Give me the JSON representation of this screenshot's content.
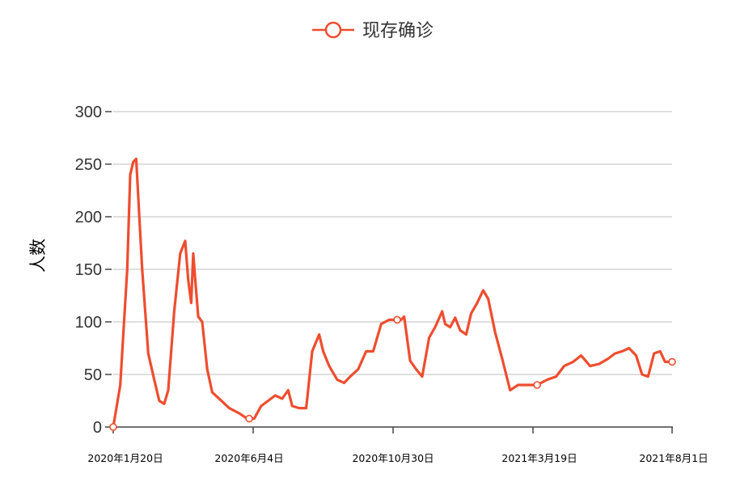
{
  "colors": {
    "series": "#ee4d2f",
    "grid": "#cccccc",
    "axis": "#444444",
    "background": "#ffffff"
  },
  "legend_icon": "circle-line-icon",
  "chart_data": {
    "type": "line",
    "title": "",
    "xlabel": "",
    "ylabel": "人数",
    "ylim": [
      0,
      300
    ],
    "yticks": [
      "0",
      "50",
      "100",
      "150",
      "200",
      "250",
      "300"
    ],
    "xticks": [
      "2020年1月20日",
      "2020年6月4日",
      "2020年10月30日",
      "2021年3月19日",
      "2021年8月1日"
    ],
    "xlim": [
      "2020-01-20",
      "2021-08-01"
    ],
    "grid": true,
    "legend_position": "top-center",
    "series": [
      {
        "name": "现存确诊",
        "x": [
          "2020-01-20",
          "2020-01-27",
          "2020-02-03",
          "2020-02-06",
          "2020-02-09",
          "2020-02-12",
          "2020-02-18",
          "2020-02-24",
          "2020-03-01",
          "2020-03-06",
          "2020-03-11",
          "2020-03-15",
          "2020-03-21",
          "2020-03-27",
          "2020-04-01",
          "2020-04-04",
          "2020-04-07",
          "2020-04-09",
          "2020-04-11",
          "2020-04-14",
          "2020-04-18",
          "2020-04-23",
          "2020-04-28",
          "2020-05-06",
          "2020-05-15",
          "2020-05-25",
          "2020-06-02",
          "2020-06-09",
          "2020-06-16",
          "2020-06-23",
          "2020-06-30",
          "2020-07-07",
          "2020-07-13",
          "2020-07-17",
          "2020-07-24",
          "2020-07-31",
          "2020-08-06",
          "2020-08-13",
          "2020-08-17",
          "2020-08-23",
          "2020-08-31",
          "2020-09-07",
          "2020-09-13",
          "2020-09-21",
          "2020-09-29",
          "2020-10-06",
          "2020-10-14",
          "2020-10-22",
          "2020-10-30",
          "2020-11-03",
          "2020-11-06",
          "2020-11-12",
          "2020-11-18",
          "2020-11-24",
          "2020-12-01",
          "2020-12-07",
          "2020-12-14",
          "2020-12-17",
          "2020-12-22",
          "2020-12-27",
          "2021-01-01",
          "2021-01-07",
          "2021-01-12",
          "2021-01-18",
          "2021-01-24",
          "2021-01-29",
          "2021-02-05",
          "2021-02-12",
          "2021-02-20",
          "2021-02-28",
          "2021-03-09",
          "2021-03-19",
          "2021-03-29",
          "2021-04-07",
          "2021-04-15",
          "2021-04-24",
          "2021-05-02",
          "2021-05-11",
          "2021-05-20",
          "2021-05-29",
          "2021-06-05",
          "2021-06-12",
          "2021-06-19",
          "2021-06-26",
          "2021-07-02",
          "2021-07-08",
          "2021-07-14",
          "2021-07-20",
          "2021-07-25",
          "2021-08-01"
        ],
        "values": [
          0,
          40,
          150,
          240,
          252,
          255,
          150,
          70,
          45,
          25,
          22,
          35,
          110,
          165,
          177,
          140,
          118,
          165,
          140,
          105,
          100,
          55,
          33,
          26,
          18,
          13,
          8,
          8,
          20,
          25,
          30,
          27,
          35,
          20,
          18,
          18,
          72,
          88,
          72,
          58,
          45,
          42,
          48,
          55,
          72,
          72,
          98,
          102,
          102,
          102,
          105,
          63,
          55,
          48,
          85,
          95,
          110,
          98,
          95,
          104,
          92,
          88,
          108,
          118,
          130,
          122,
          90,
          65,
          35,
          40,
          40,
          40,
          45,
          48,
          58,
          62,
          68,
          58,
          60,
          65,
          70,
          72,
          75,
          68,
          50,
          48,
          70,
          72,
          62,
          62
        ]
      }
    ],
    "markers": [
      {
        "x": "2020-01-20",
        "y": 0
      },
      {
        "x": "2020-06-04",
        "y": 8
      },
      {
        "x": "2020-10-30",
        "y": 102
      },
      {
        "x": "2021-03-19",
        "y": 40
      },
      {
        "x": "2021-08-01",
        "y": 62
      }
    ]
  }
}
